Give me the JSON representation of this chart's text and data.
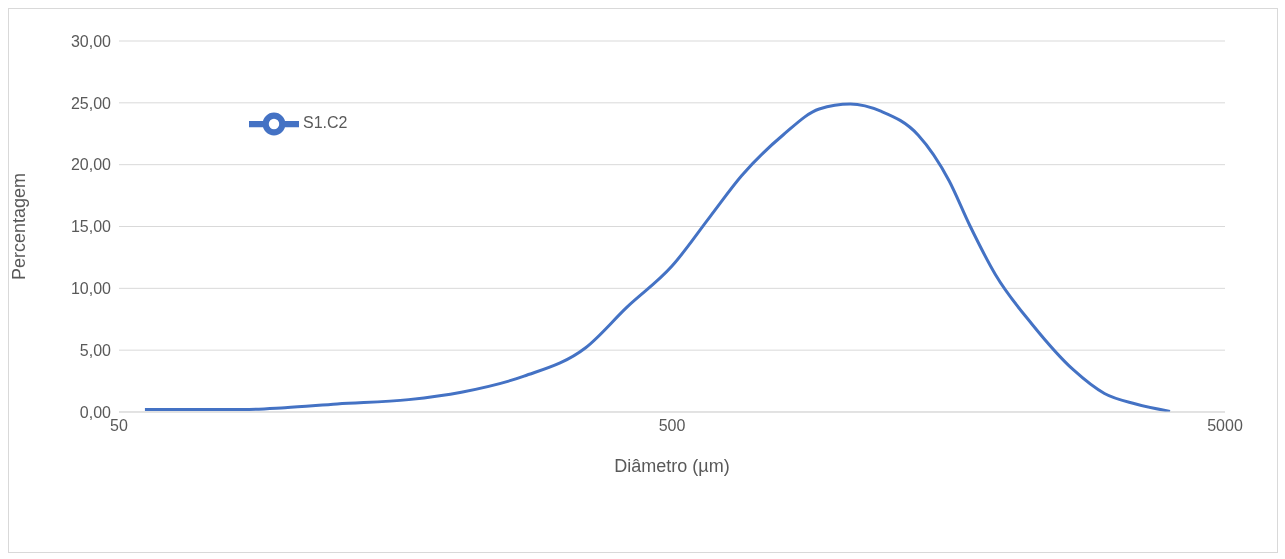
{
  "chart_data": {
    "type": "line",
    "xlabel": "Diâmetro (µm)",
    "ylabel": "Percentagem",
    "log": "x",
    "grid": "y",
    "legend": "top left",
    "marker": "none",
    "line_style": "solid",
    "xlim": [
      50,
      5000
    ],
    "xticks": [
      50,
      500,
      5000
    ],
    "ylim": [
      0,
      30
    ],
    "yticks": [
      {
        "value": 0,
        "label": "0,00"
      },
      {
        "value": 5,
        "label": "5,00"
      },
      {
        "value": 10,
        "label": "10,00"
      },
      {
        "value": 15,
        "label": "15,00"
      },
      {
        "value": 20,
        "label": "20,00"
      },
      {
        "value": 25,
        "label": "25,00"
      },
      {
        "value": 30,
        "label": "30,00"
      }
    ],
    "series": [
      {
        "name": "S1.C2",
        "color": "#4472c4",
        "x": [
          55.7,
          84,
          99.8,
          124,
          167,
          208,
          270,
          349,
          415,
          500,
          586,
          668,
          794,
          923,
          1051,
          1196,
          1393,
          1585,
          1727,
          1923,
          2239,
          2661,
          3027,
          3449,
          3977
        ],
        "values": [
          0.2,
          0.2,
          0.35,
          0.65,
          1.0,
          1.6,
          2.9,
          5.2,
          8.5,
          11.8,
          15.8,
          19.1,
          22.4,
          24.5,
          24.9,
          24.3,
          22.4,
          18.7,
          15.1,
          11.1,
          7.1,
          3.4,
          1.5,
          0.65,
          0.05
        ]
      }
    ]
  }
}
